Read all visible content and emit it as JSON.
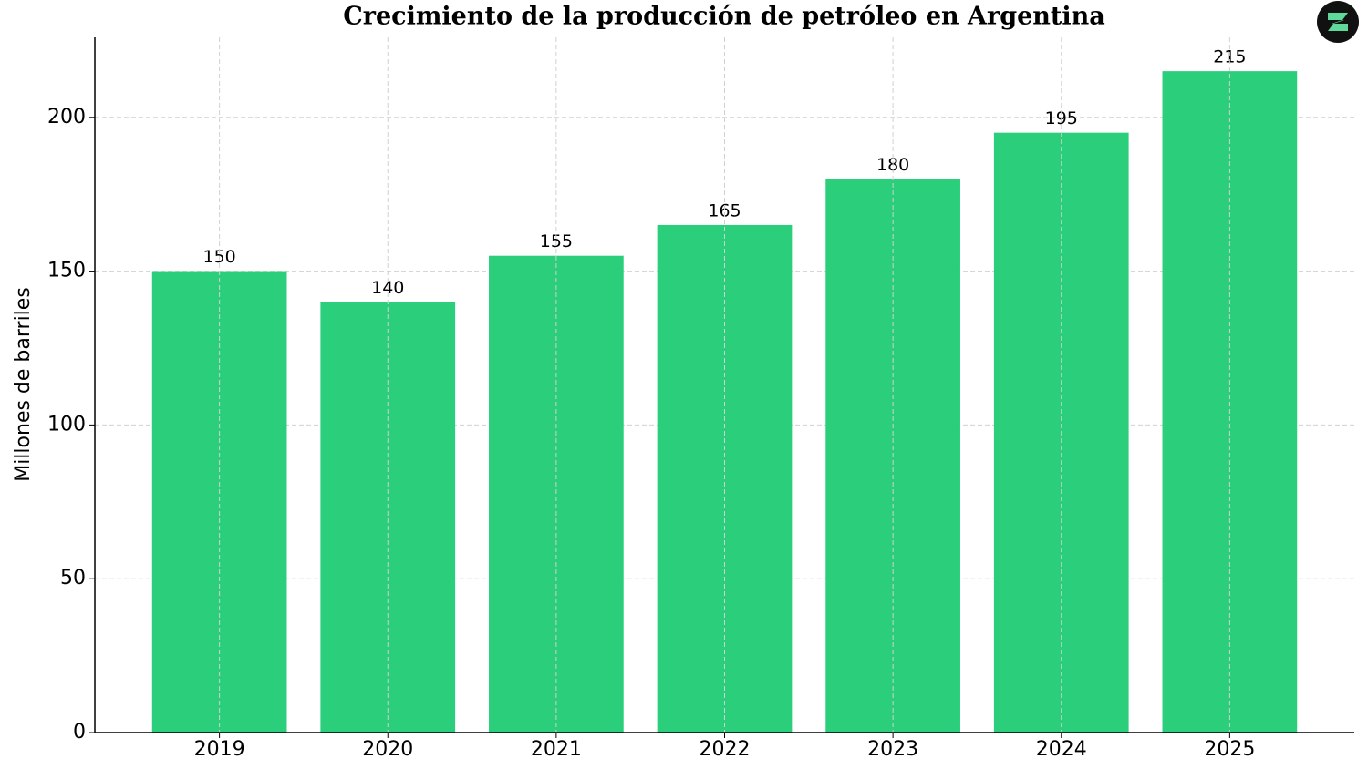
{
  "chart_data": {
    "type": "bar",
    "title": "Crecimiento de la producción de petróleo en Argentina",
    "y_label": "Millones de barriles",
    "categories": [
      "2019",
      "2020",
      "2021",
      "2022",
      "2023",
      "2024",
      "2025"
    ],
    "values": [
      150,
      140,
      155,
      165,
      180,
      195,
      215
    ],
    "color": "#2ace7b",
    "ylim": [
      0,
      226
    ],
    "yticks": [
      0,
      50,
      100,
      150,
      200
    ],
    "grid": true,
    "value_labels_shown": true
  }
}
